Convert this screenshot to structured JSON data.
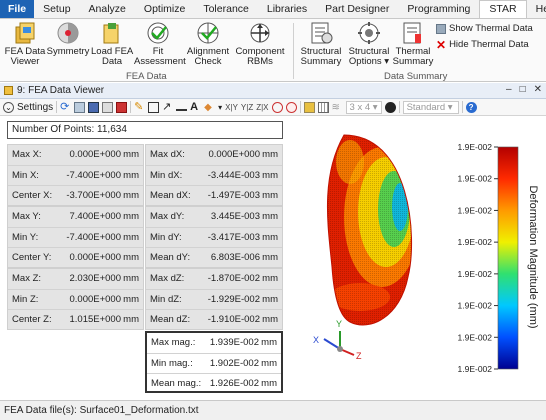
{
  "menu": {
    "items": [
      "File",
      "Setup",
      "Analyze",
      "Optimize",
      "Tolerance",
      "Libraries",
      "Part Designer",
      "Programming",
      "STAR",
      "Help"
    ],
    "active": "STAR"
  },
  "ribbon": {
    "fea_data_viewer": "FEA Data\nViewer",
    "symmetry": "Symmetry",
    "load_fea_data": "Load FEA\nData",
    "fit_assessment": "Fit\nAssessment",
    "alignment_check": "Alignment\nCheck",
    "component_rbms": "Component\nRBMs",
    "group_fea": "FEA Data",
    "structural_summary": "Structural\nSummary",
    "structural_options": "Structural\nOptions",
    "thermal_summary": "Thermal\nSummary",
    "show_thermal": "Show Thermal Data",
    "hide_thermal": "Hide Thermal Data",
    "group_summary": "Data Summary"
  },
  "viewer": {
    "title": "9: FEA Data Viewer",
    "settings": "Settings",
    "grid_dropdown": "3 x 4",
    "view_dropdown": "Standard",
    "axis_buttons": [
      "X|Y",
      "Y|Z",
      "Z|X"
    ]
  },
  "stats": {
    "points_label": "Number Of Points:",
    "points_value": "11,634",
    "x": [
      {
        "name": "Max X:",
        "value": "0.000E+000",
        "unit": "mm"
      },
      {
        "name": "Min X:",
        "value": "-7.400E+000",
        "unit": "mm"
      },
      {
        "name": "Center X:",
        "value": "-3.700E+000",
        "unit": "mm"
      }
    ],
    "dx": [
      {
        "name": "Max dX:",
        "value": "0.000E+000",
        "unit": "mm"
      },
      {
        "name": "Min dX:",
        "value": "-3.444E-003",
        "unit": "mm"
      },
      {
        "name": "Mean dX:",
        "value": "-1.497E-003",
        "unit": "mm"
      }
    ],
    "y": [
      {
        "name": "Max Y:",
        "value": "7.400E+000",
        "unit": "mm"
      },
      {
        "name": "Min Y:",
        "value": "-7.400E+000",
        "unit": "mm"
      },
      {
        "name": "Center Y:",
        "value": "0.000E+000",
        "unit": "mm"
      }
    ],
    "dy": [
      {
        "name": "Max dY:",
        "value": "3.445E-003",
        "unit": "mm"
      },
      {
        "name": "Min dY:",
        "value": "-3.417E-003",
        "unit": "mm"
      },
      {
        "name": "Mean dY:",
        "value": "6.803E-006",
        "unit": "mm"
      }
    ],
    "z": [
      {
        "name": "Max Z:",
        "value": "2.030E+000",
        "unit": "mm"
      },
      {
        "name": "Min Z:",
        "value": "0.000E+000",
        "unit": "mm"
      },
      {
        "name": "Center Z:",
        "value": "1.015E+000",
        "unit": "mm"
      }
    ],
    "dz": [
      {
        "name": "Max dZ:",
        "value": "-1.870E-002",
        "unit": "mm"
      },
      {
        "name": "Min dZ:",
        "value": "-1.929E-002",
        "unit": "mm"
      },
      {
        "name": "Mean dZ:",
        "value": "-1.910E-002",
        "unit": "mm"
      }
    ],
    "mag": [
      {
        "name": "Max mag.:",
        "value": "1.939E-002",
        "unit": "mm"
      },
      {
        "name": "Min mag.:",
        "value": "1.902E-002",
        "unit": "mm"
      },
      {
        "name": "Mean mag.:",
        "value": "1.926E-002",
        "unit": "mm"
      }
    ]
  },
  "colorbar": {
    "title": "Deformation Magnitude (mm)",
    "ticks": [
      "1.9E-002",
      "1.9E-002",
      "1.9E-002",
      "1.9E-002",
      "1.9E-002",
      "1.9E-002",
      "1.9E-002",
      "1.9E-002"
    ],
    "colors": [
      "#b30000",
      "#ff2a00",
      "#ff9a00",
      "#f0f000",
      "#30e070",
      "#00c8ff",
      "#0050ff",
      "#000090"
    ]
  },
  "triad": {
    "x": "X",
    "y": "Y",
    "z": "Z"
  },
  "status": "FEA Data file(s): Surface01_Deformation.txt"
}
